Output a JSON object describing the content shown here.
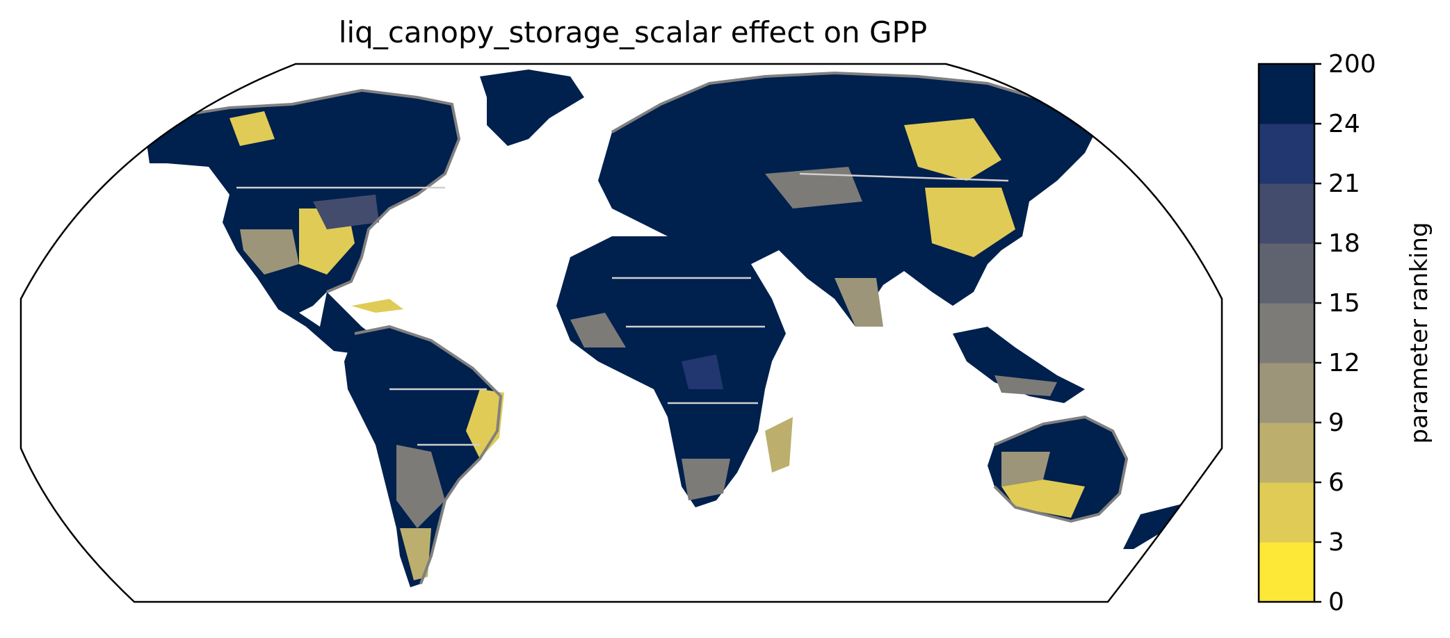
{
  "title": "liq_canopy_storage_scalar effect on GPP",
  "colorbar": {
    "label": "parameter ranking",
    "ticks": [
      "0",
      "3",
      "6",
      "9",
      "12",
      "15",
      "18",
      "21",
      "24",
      "200"
    ],
    "bins": [
      {
        "from": "0",
        "to": "3",
        "color": "#fde737"
      },
      {
        "from": "3",
        "to": "6",
        "color": "#e0cb56"
      },
      {
        "from": "6",
        "to": "9",
        "color": "#bcaf6e"
      },
      {
        "from": "9",
        "to": "12",
        "color": "#9c9579"
      },
      {
        "from": "12",
        "to": "15",
        "color": "#7c7b78"
      },
      {
        "from": "15",
        "to": "18",
        "color": "#5f636f"
      },
      {
        "from": "18",
        "to": "21",
        "color": "#434c6c"
      },
      {
        "from": "21",
        "to": "24",
        "color": "#22376f"
      },
      {
        "from": "24",
        "to": "200",
        "color": "#00204d"
      }
    ]
  },
  "colors": {
    "land_dominant": "#00204d",
    "coastline": "#808080",
    "borders": "#d0d0d0",
    "map_outline": "#000000"
  }
}
